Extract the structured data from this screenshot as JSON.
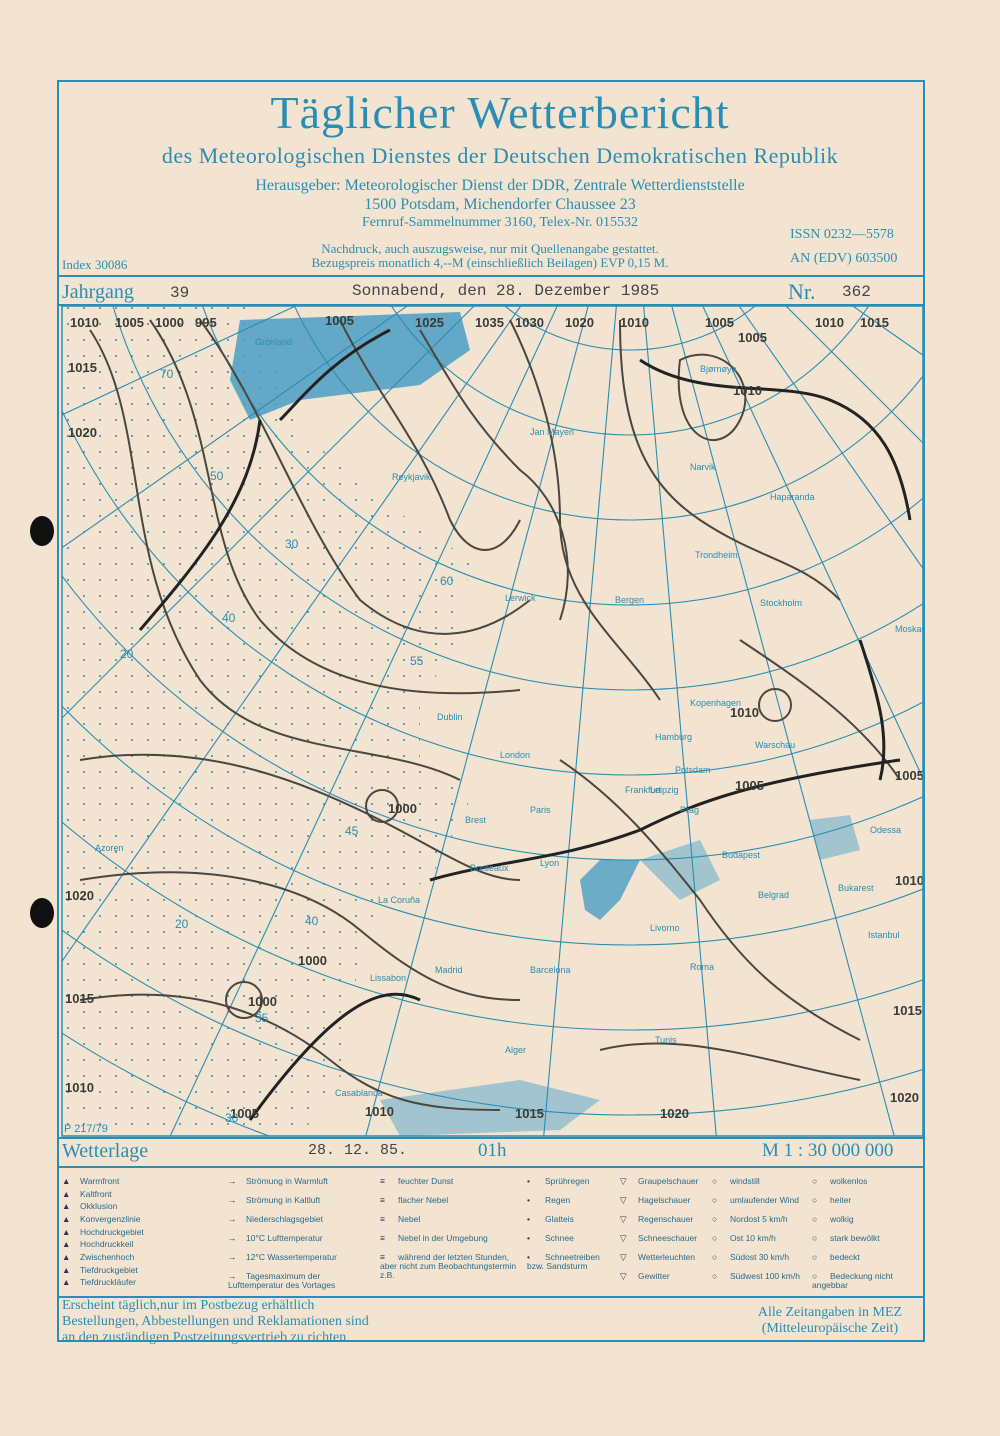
{
  "header": {
    "title": "Täglicher Wetterbericht",
    "subtitle": "des Meteorologischen Dienstes der Deutschen Demokratischen Republik",
    "publisher": [
      "Herausgeber: Meteorologischer Dienst der DDR, Zentrale Wetterdienststelle",
      "1500 Potsdam, Michendorfer Chaussee 23",
      "Fernruf-Sammelnummer 3160, Telex-Nr. 015532"
    ],
    "reprint": [
      "Nachdruck, auch auszugsweise, nur mit Quellenangabe gestattet.",
      "Bezugspreis monatlich 4,--M (einschließlich Beilagen) EVP 0,15 M."
    ],
    "index": "Index 30086",
    "issn": "ISSN 0232—5578",
    "an_edv": "AN (EDV) 603500"
  },
  "issue": {
    "jahrgang_label": "Jahrgang",
    "jahrgang": "39",
    "date": "Sonnabend, den 28. Dezember 1985",
    "nr_label": "Nr.",
    "nr": "362"
  },
  "map": {
    "code": "P 217/79",
    "cities": [
      "Grönland",
      "Reykjavik",
      "Jan Mayen",
      "Bjørnøya",
      "Narvik",
      "Haparanda",
      "Trondheim",
      "Bergen",
      "Lerwick",
      "Stockholm",
      "Moskau",
      "Kopenhagen",
      "Dublin",
      "London",
      "Hamburg",
      "Warschau",
      "Potsdam",
      "Leipzig",
      "Prag",
      "Frankfurt",
      "Paris",
      "Brest",
      "Lyon",
      "Bordeaux",
      "Budapest",
      "La Coruña",
      "Belgrad",
      "Bukarest",
      "Odessa",
      "Istanbul",
      "Livorno",
      "Roma",
      "Madrid",
      "Barcelona",
      "Lissabon",
      "Tunis",
      "Alger",
      "Casablanca",
      "Azoren"
    ],
    "isobars": [
      "1010",
      "1005",
      "1000",
      "995",
      "1005",
      "1025",
      "1035",
      "1030",
      "1020",
      "1010",
      "1005",
      "1005",
      "1010",
      "1015",
      "1015",
      "1020",
      "1020",
      "1015",
      "1010",
      "1005",
      "1010",
      "1015",
      "1005",
      "1010",
      "1020",
      "1000",
      "1000",
      "1000",
      "1010",
      "1015",
      "1020",
      "1005",
      "1010"
    ],
    "latitudes": [
      "70",
      "60",
      "55",
      "50",
      "45",
      "40",
      "35",
      "30",
      "20",
      "30",
      "40",
      "20"
    ]
  },
  "wetterlage": {
    "label": "Wetterlage",
    "date": "28. 12. 85.",
    "time": "01h",
    "scale": "M 1 : 30 000 000"
  },
  "legend": [
    [
      "Warmfront",
      "Kaltfront",
      "Okklusion",
      "Konvergenzlinie",
      "Hochdruckgebiet",
      "Hochdruckkeil",
      "Zwischenhoch",
      "Tiefdruckgebiet",
      "Tiefdruckläufer"
    ],
    [
      "Strömung in Warmluft",
      "Strömung in Kaltluft",
      "Niederschlagsgebiet",
      "10°C Lufttemperatur",
      "12°C Wassertemperatur",
      "Tagesmaximum der Lufttemperatur des Vortages"
    ],
    [
      "feuchter Dunst",
      "flacher Nebel",
      "Nebel",
      "Nebel in der Umgebung",
      "während der letzten Stunden, aber nicht zum Beobachtungstermin z.B."
    ],
    [
      "Sprühregen",
      "Regen",
      "Glatteis",
      "Schnee",
      "Schneetreiben bzw. Sandsturm"
    ],
    [
      "Graupelschauer",
      "Hagelschauer",
      "Regenschauer",
      "Schneeschauer",
      "Wetterleuchten",
      "Gewitter"
    ],
    [
      "windstill",
      "umlaufender Wind",
      "Nordost 5 km/h",
      "Ost 10 km/h",
      "Südost 30 km/h",
      "Südwest 100 km/h"
    ],
    [
      "wolkenlos",
      "heiter",
      "wolkig",
      "stark bewölkt",
      "bedeckt",
      "Bedeckung nicht angebbar"
    ]
  ],
  "footer": {
    "left": [
      "Erscheint täglich,nur im Postbezug erhältlich",
      "Bestellungen, Abbestellungen und Reklamationen sind",
      "an den zuständigen Postzeitungsvertrieb zu richten"
    ],
    "right": [
      "Alle Zeitangaben in MEZ",
      "(Mitteleuropäische Zeit)"
    ]
  }
}
